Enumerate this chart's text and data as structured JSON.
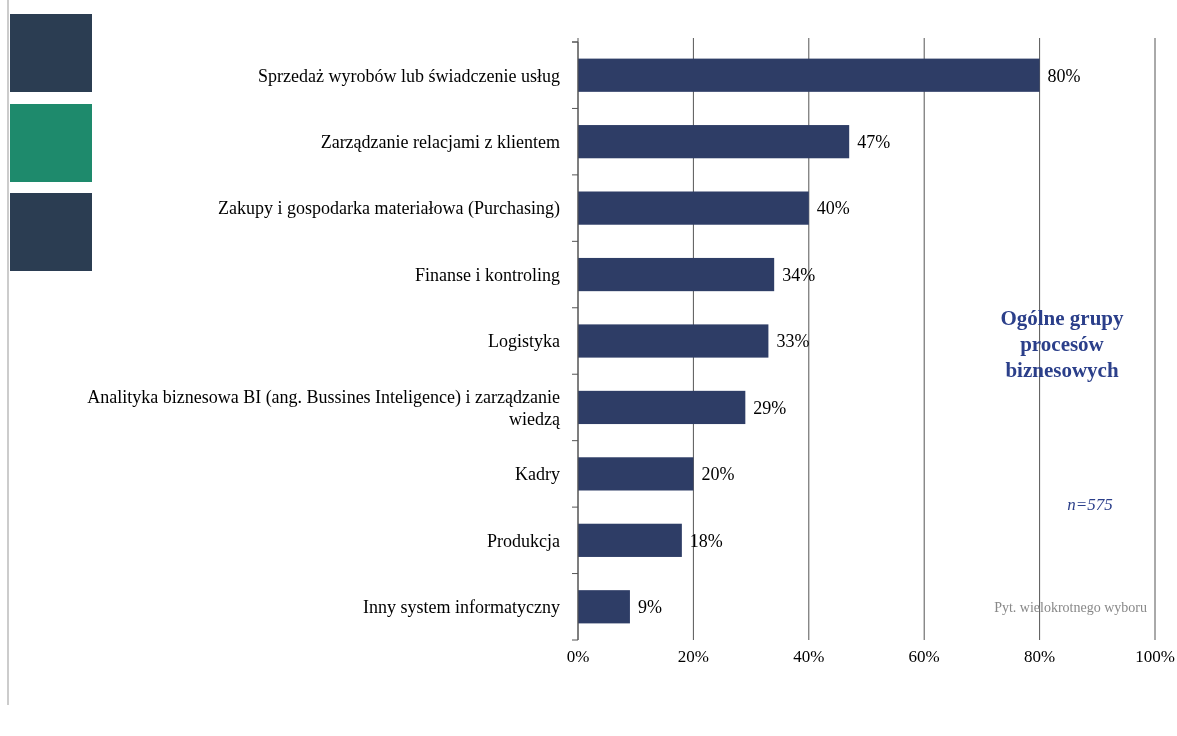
{
  "chart_data": {
    "type": "bar",
    "orientation": "horizontal",
    "title": "Ogólne grupy procesów biznesowych",
    "categories": [
      "Sprzedaż wyrobów lub świadczenie usług",
      "Zarządzanie relacjami z klientem",
      "Zakupy i gospodarka materiałowa (Purchasing)",
      "Finanse i kontroling",
      "Logistyka",
      "Analityka biznesowa BI (ang. Bussines Inteligence) i zarządzanie wiedzą",
      "Kadry",
      "Produkcja",
      "Inny system informatyczny"
    ],
    "values": [
      80,
      47,
      40,
      34,
      33,
      29,
      20,
      18,
      9
    ],
    "value_labels": [
      "80%",
      "47%",
      "40%",
      "34%",
      "33%",
      "29%",
      "20%",
      "18%",
      "9%"
    ],
    "color": "#2e3d66",
    "xlim": [
      0,
      100
    ],
    "xticks": [
      {
        "value": 0,
        "label": "0%"
      },
      {
        "value": 20,
        "label": "20%"
      },
      {
        "value": 40,
        "label": "40%"
      },
      {
        "value": 60,
        "label": "60%"
      },
      {
        "value": 80,
        "label": "80%"
      },
      {
        "value": 100,
        "label": "100%"
      }
    ],
    "grid": "x",
    "annotations": [
      "n=575",
      "Pyt. wielokrotnego wyboru"
    ]
  }
}
